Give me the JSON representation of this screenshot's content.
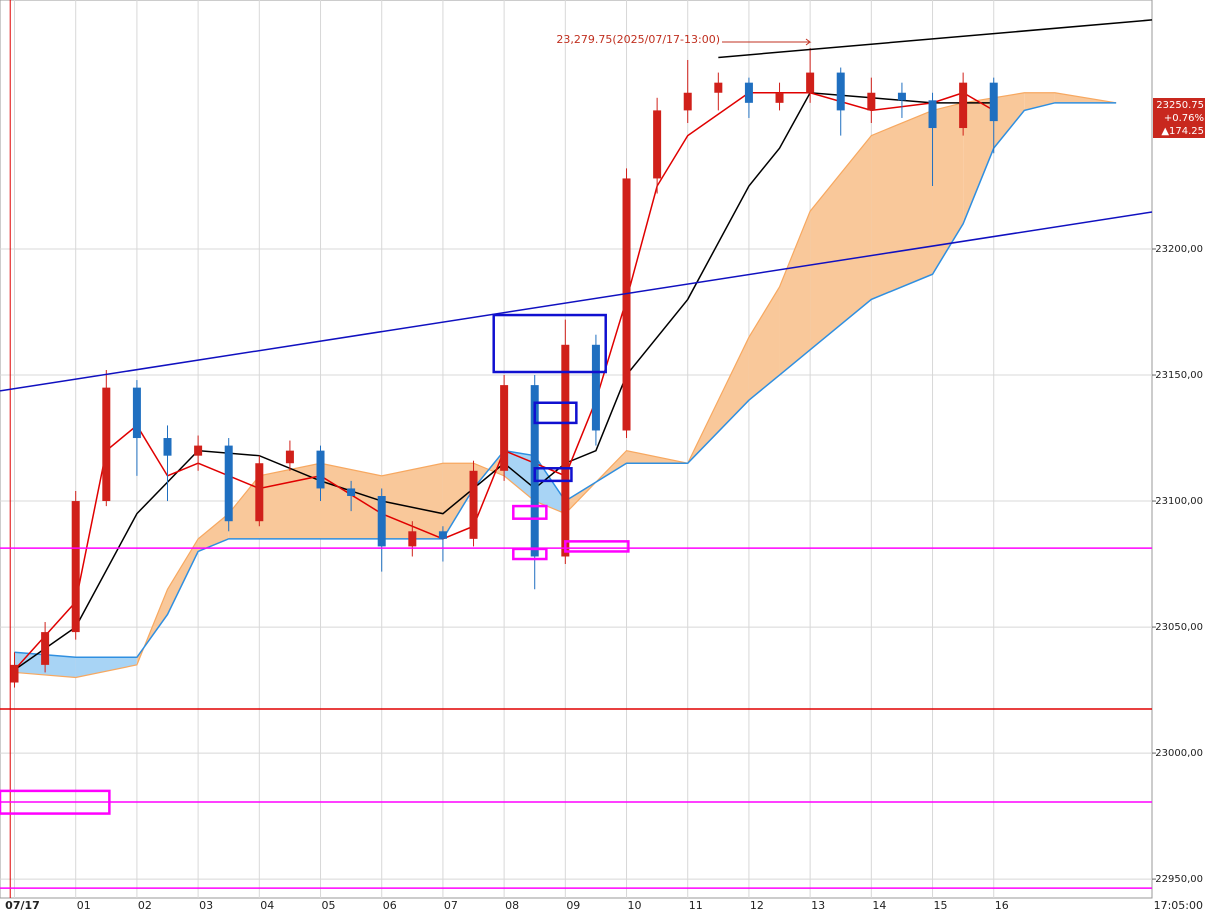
{
  "chart_data": {
    "type": "candlestick",
    "annotation": "23,279.75(2025/07/17-13:00)",
    "price_label": "23250.75",
    "change_pct": "+0.76%",
    "change_abs": "▲174.25",
    "time_label": "17:05:00",
    "xlim": [
      -0.237,
      18.586
    ],
    "ylim": [
      22942.5,
      23298.8
    ],
    "grid": true,
    "xticks": [
      {
        "value": 0,
        "label": "07/17"
      },
      {
        "value": 1,
        "label": "01"
      },
      {
        "value": 2,
        "label": "02"
      },
      {
        "value": 3,
        "label": "03"
      },
      {
        "value": 4,
        "label": "04"
      },
      {
        "value": 5,
        "label": "05"
      },
      {
        "value": 6,
        "label": "06"
      },
      {
        "value": 7,
        "label": "07"
      },
      {
        "value": 8,
        "label": "08"
      },
      {
        "value": 9,
        "label": "09"
      },
      {
        "value": 10,
        "label": "10"
      },
      {
        "value": 11,
        "label": "11"
      },
      {
        "value": 12,
        "label": "12"
      },
      {
        "value": 13,
        "label": "13"
      },
      {
        "value": 14,
        "label": "14"
      },
      {
        "value": 15,
        "label": "15"
      },
      {
        "value": 16,
        "label": "16"
      }
    ],
    "yticks": [
      {
        "value": 22950,
        "label": "22950,00"
      },
      {
        "value": 23000,
        "label": "23000,00"
      },
      {
        "value": 23050,
        "label": "23050,00"
      },
      {
        "value": 23100,
        "label": "23100,00"
      },
      {
        "value": 23150,
        "label": "23150,00"
      },
      {
        "value": 23200,
        "label": "23200,00"
      }
    ],
    "marker_x": -0.07,
    "up_color": "#d0201a",
    "down_color": "#1f6fc0",
    "x": [
      0,
      0.5,
      1,
      1.5,
      2,
      2.5,
      3,
      3.5,
      4,
      4.5,
      5,
      5.5,
      6,
      6.5,
      7,
      7.5,
      8,
      8.5,
      9,
      9.5,
      10,
      10.5,
      11,
      11.5,
      12,
      12.5,
      13,
      13.5,
      14,
      14.5,
      15,
      15.5,
      16
    ],
    "open": [
      23028,
      23035,
      23048,
      23100,
      23145,
      23125,
      23118,
      23122,
      23092,
      23115,
      23120,
      23105,
      23102,
      23082,
      23088,
      23085,
      23112,
      23146,
      23078,
      23162,
      23128,
      23228,
      23255,
      23262,
      23266,
      23258,
      23262,
      23270,
      23255,
      23262,
      23259,
      23248,
      23266
    ],
    "high": [
      23040,
      23052,
      23104,
      23152,
      23148,
      23130,
      23126,
      23125,
      23118,
      23124,
      23122,
      23108,
      23105,
      23092,
      23090,
      23116,
      23150,
      23150,
      23172,
      23166,
      23232,
      23260,
      23275,
      23270,
      23268,
      23266,
      23279.75,
      23272,
      23268,
      23266,
      23262,
      23270,
      23268
    ],
    "low": [
      23026,
      23032,
      23045,
      23098,
      23110,
      23100,
      23112,
      23088,
      23090,
      23112,
      23100,
      23096,
      23072,
      23078,
      23076,
      23082,
      23108,
      23065,
      23075,
      23122,
      23125,
      23222,
      23250,
      23255,
      23252,
      23255,
      23258,
      23245,
      23250,
      23252,
      23225,
      23245,
      23238
    ],
    "close": [
      23035,
      23048,
      23100,
      23145,
      23125,
      23118,
      23122,
      23092,
      23115,
      23120,
      23105,
      23102,
      23082,
      23088,
      23085,
      23112,
      23146,
      23078,
      23162,
      23128,
      23228,
      23255,
      23262,
      23266,
      23258,
      23262,
      23270,
      23255,
      23262,
      23259,
      23248,
      23266,
      23250.75
    ],
    "tenkan": {
      "color": "#e00000",
      "x": [
        0,
        1,
        1.5,
        2,
        2.5,
        3,
        4,
        5,
        6,
        7,
        7.5,
        8,
        8.5,
        9,
        9.5,
        10,
        10.5,
        11,
        12,
        13,
        14,
        15,
        15.5,
        16
      ],
      "y": [
        23033,
        23060,
        23120,
        23130,
        23110,
        23115,
        23105,
        23110,
        23095,
        23085,
        23090,
        23120,
        23115,
        23110,
        23140,
        23180,
        23225,
        23245,
        23262,
        23262,
        23255,
        23258,
        23262,
        23255
      ]
    },
    "kijun": {
      "color": "#000000",
      "x": [
        0,
        1,
        2,
        3,
        4,
        5,
        6,
        7,
        8,
        8.5,
        9,
        9.5,
        10,
        11,
        12,
        12.5,
        13,
        14,
        15,
        16
      ],
      "y": [
        23033,
        23050,
        23095,
        23120,
        23118,
        23108,
        23100,
        23095,
        23115,
        23105,
        23115,
        23120,
        23150,
        23180,
        23225,
        23240,
        23262,
        23260,
        23258,
        23258
      ]
    },
    "cloud": {
      "x": [
        0,
        1,
        2,
        2.5,
        3,
        3.5,
        4,
        5,
        6,
        7,
        7.5,
        8,
        8.5,
        9,
        10,
        11,
        12,
        12.5,
        13,
        14,
        15,
        15.5,
        16,
        16.5,
        17,
        18
      ],
      "span_a": [
        23032,
        23030,
        23035,
        23065,
        23085,
        23095,
        23110,
        23115,
        23110,
        23115,
        23115,
        23110,
        23100,
        23095,
        23120,
        23115,
        23165,
        23185,
        23215,
        23245,
        23255,
        23258,
        23260,
        23262,
        23262,
        23258
      ],
      "span_b": [
        23040,
        23038,
        23038,
        23055,
        23080,
        23085,
        23085,
        23085,
        23085,
        23085,
        23105,
        23120,
        23118,
        23100,
        23115,
        23115,
        23140,
        23150,
        23160,
        23180,
        23190,
        23210,
        23240,
        23255,
        23258,
        23258
      ],
      "span_a_color": "#f7a860",
      "span_b_color": "#2f8fe0",
      "bull_fill": "#f9c89a",
      "bear_fill": "#a8d4f5"
    },
    "trend_lines": [
      {
        "color": "#1010c0",
        "x": [
          -0.237,
          18.586
        ],
        "y": [
          23143.7,
          23214.7
        ]
      },
      {
        "color": "#000000",
        "x": [
          11.5,
          18.586
        ],
        "y": [
          23276,
          23290.9
        ]
      }
    ],
    "levels": [
      {
        "value": 23081.3,
        "color": "#ff00ff"
      },
      {
        "value": 23017.5,
        "color": "#e00000"
      },
      {
        "value": 22980.6,
        "color": "#ff00ff"
      },
      {
        "value": 22946.4,
        "color": "#ff00ff"
      }
    ],
    "boxes": [
      {
        "color": "#1010d0",
        "x": [
          7.83,
          9.66
        ],
        "y": [
          23151.2,
          23173.8
        ]
      },
      {
        "color": "#1010d0",
        "x": [
          8.5,
          9.18
        ],
        "y": [
          23131,
          23139
        ]
      },
      {
        "color": "#1010d0",
        "x": [
          8.5,
          9.1
        ],
        "y": [
          23108,
          23113
        ]
      },
      {
        "color": "#ff00ff",
        "x": [
          8.15,
          8.69
        ],
        "y": [
          23093,
          23098
        ]
      },
      {
        "color": "#ff00ff",
        "x": [
          8.15,
          8.69
        ],
        "y": [
          23077,
          23081
        ]
      },
      {
        "color": "#ff00ff",
        "x": [
          9.0,
          10.03
        ],
        "y": [
          23080,
          23084
        ]
      },
      {
        "color": "#ff00ff",
        "x": [
          -0.237,
          1.55
        ],
        "y": [
          22976,
          22985
        ]
      }
    ]
  }
}
